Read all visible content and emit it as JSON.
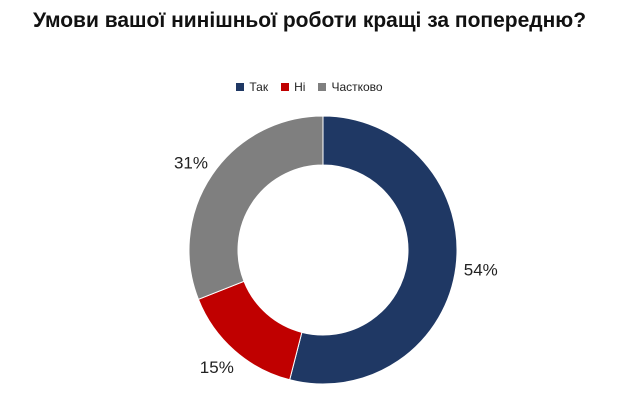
{
  "chart_data": {
    "type": "pie",
    "donut": true,
    "title": "Умови вашої нинішньої роботи кращі за попередню?",
    "legend_position": "top",
    "categories": [
      "Так",
      "Ні",
      "Частково"
    ],
    "values": [
      54,
      15,
      31
    ],
    "data_labels": [
      "54%",
      "15%",
      "31%"
    ],
    "colors": [
      "#1f3864",
      "#c00000",
      "#7f7f7f"
    ]
  }
}
